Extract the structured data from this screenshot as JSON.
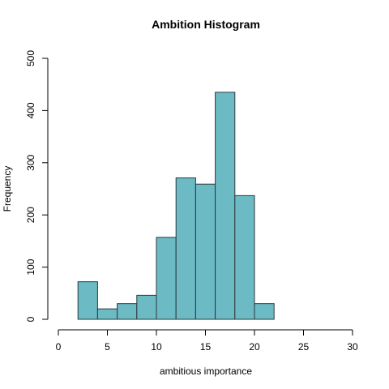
{
  "chart_data": {
    "type": "bar",
    "title": "Ambition Histogram",
    "xlabel": "ambitious importance",
    "ylabel": "Frequency",
    "xlim": [
      0,
      30
    ],
    "ylim": [
      0,
      500
    ],
    "x_ticks": [
      "0",
      "5",
      "10",
      "15",
      "20",
      "25",
      "30"
    ],
    "y_ticks": [
      "0",
      "100",
      "200",
      "300",
      "400",
      "500"
    ],
    "bar_color": "#6cbac4",
    "bins": [
      {
        "start": 2,
        "end": 4,
        "value": 72
      },
      {
        "start": 4,
        "end": 6,
        "value": 20
      },
      {
        "start": 6,
        "end": 8,
        "value": 30
      },
      {
        "start": 8,
        "end": 10,
        "value": 46
      },
      {
        "start": 10,
        "end": 12,
        "value": 157
      },
      {
        "start": 12,
        "end": 14,
        "value": 271
      },
      {
        "start": 14,
        "end": 16,
        "value": 259
      },
      {
        "start": 16,
        "end": 18,
        "value": 435
      },
      {
        "start": 18,
        "end": 20,
        "value": 237
      },
      {
        "start": 20,
        "end": 22,
        "value": 30
      }
    ]
  }
}
